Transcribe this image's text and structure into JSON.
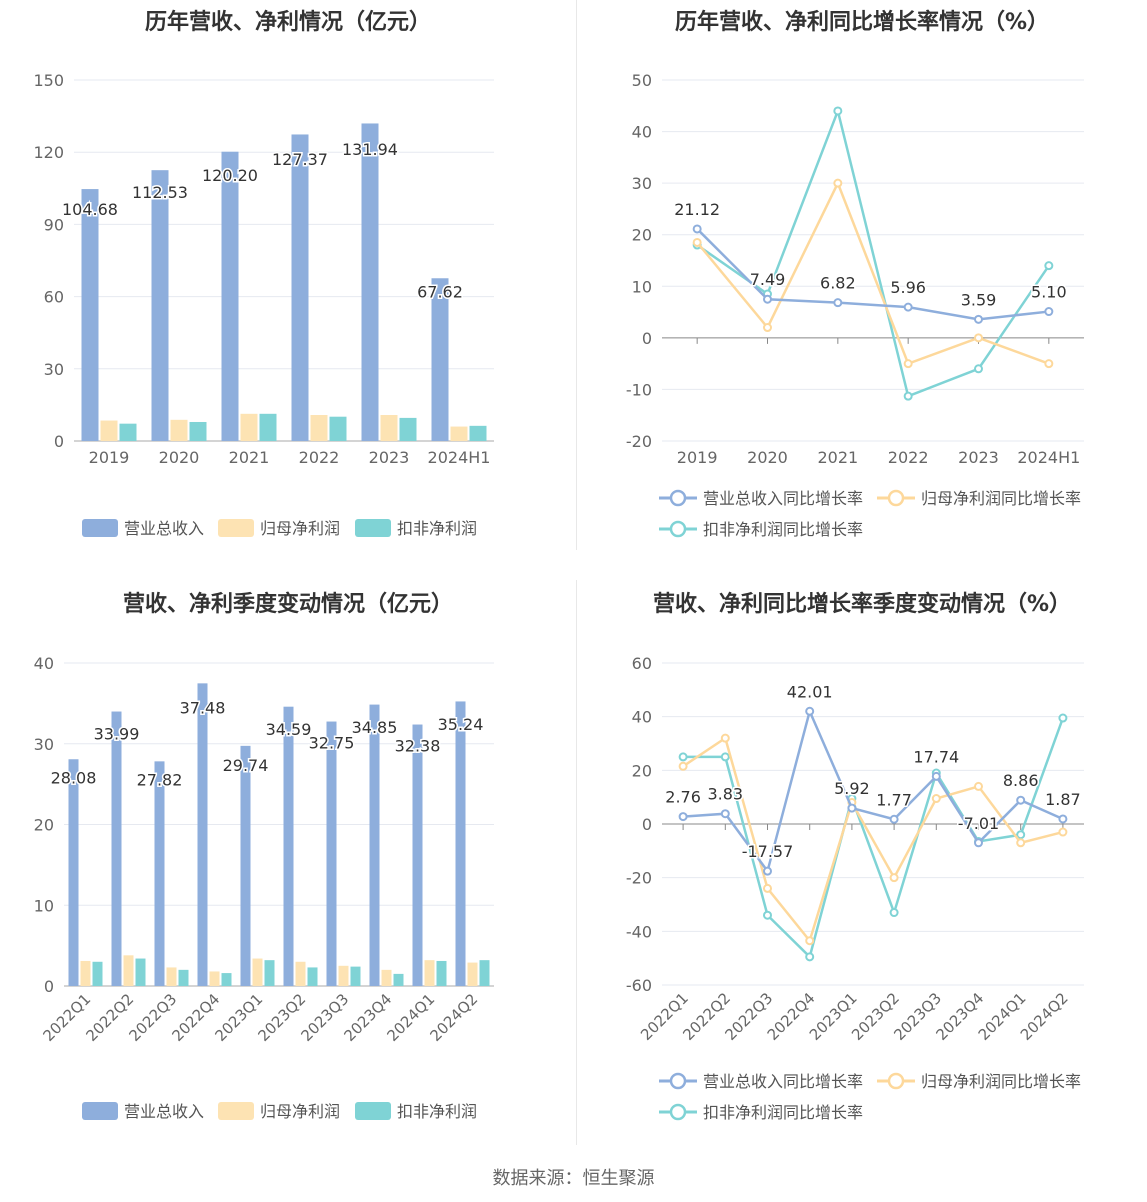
{
  "footer": {
    "source": "数据来源：恒生聚源"
  },
  "colors": {
    "revenue": "#8eaedc",
    "net_profit": "#fde3b3",
    "deducted": "#7fd3d5",
    "revenue_line": "#8eaedc",
    "net_line": "#fdd89b",
    "deducted_line": "#7fd3d5"
  },
  "chart_data": [
    {
      "type": "bar",
      "title": "历年营收、净利情况（亿元）",
      "categories": [
        "2019",
        "2020",
        "2021",
        "2022",
        "2023",
        "2024H1"
      ],
      "ylim": [
        0,
        150
      ],
      "yticks": [
        0,
        30,
        60,
        90,
        120,
        150
      ],
      "series": [
        {
          "name": "营业总收入",
          "values": [
            104.68,
            112.53,
            120.2,
            127.37,
            131.94,
            67.62
          ],
          "labels": [
            "104.68",
            "112.53",
            "120.20",
            "127.37",
            "131.94",
            "67.62"
          ]
        },
        {
          "name": "归母净利润",
          "values": [
            8.5,
            8.8,
            11.3,
            10.8,
            10.8,
            6.0
          ]
        },
        {
          "name": "扣非净利润",
          "values": [
            7.2,
            7.9,
            11.3,
            10.1,
            9.6,
            6.3
          ]
        }
      ]
    },
    {
      "type": "line",
      "title": "历年营收、净利同比增长率情况（%）",
      "categories": [
        "2019",
        "2020",
        "2021",
        "2022",
        "2023",
        "2024H1"
      ],
      "ylim": [
        -20,
        50
      ],
      "yticks": [
        -20,
        -10,
        0,
        10,
        20,
        30,
        40,
        50
      ],
      "series": [
        {
          "name": "营业总收入同比增长率",
          "values": [
            21.12,
            7.49,
            6.82,
            5.96,
            3.59,
            5.1
          ],
          "labels": [
            "21.12",
            "7.49",
            "6.82",
            "5.96",
            "3.59",
            "5.10"
          ]
        },
        {
          "name": "归母净利润同比增长率",
          "values": [
            18.5,
            2.0,
            30.0,
            -5.0,
            0.0,
            -5.0
          ]
        },
        {
          "name": "扣非净利润同比增长率",
          "values": [
            18.0,
            8.5,
            44.0,
            -11.3,
            -6.0,
            14.0
          ]
        }
      ]
    },
    {
      "type": "bar",
      "title": "营收、净利季度变动情况（亿元）",
      "categories": [
        "2022Q1",
        "2022Q2",
        "2022Q3",
        "2022Q4",
        "2023Q1",
        "2023Q2",
        "2023Q3",
        "2023Q4",
        "2024Q1",
        "2024Q2"
      ],
      "ylim": [
        0,
        40
      ],
      "yticks": [
        0,
        10,
        20,
        30,
        40
      ],
      "series": [
        {
          "name": "营业总收入",
          "values": [
            28.08,
            33.99,
            27.82,
            37.48,
            29.74,
            34.59,
            32.75,
            34.85,
            32.38,
            35.24
          ],
          "labels": [
            "28.08",
            "33.99",
            "27.82",
            "37.48",
            "29.74",
            "34.59",
            "32.75",
            "34.85",
            "32.38",
            "35.24"
          ]
        },
        {
          "name": "归母净利润",
          "values": [
            3.1,
            3.8,
            2.3,
            1.8,
            3.4,
            3.0,
            2.5,
            2.0,
            3.2,
            2.9
          ]
        },
        {
          "name": "扣非净利润",
          "values": [
            3.0,
            3.4,
            2.0,
            1.6,
            3.2,
            2.3,
            2.4,
            1.5,
            3.1,
            3.2
          ]
        }
      ]
    },
    {
      "type": "line",
      "title": "营收、净利同比增长率季度变动情况（%）",
      "categories": [
        "2022Q1",
        "2022Q2",
        "2022Q3",
        "2022Q4",
        "2023Q1",
        "2023Q2",
        "2023Q3",
        "2023Q4",
        "2024Q1",
        "2024Q2"
      ],
      "ylim": [
        -60,
        60
      ],
      "yticks": [
        -60,
        -40,
        -20,
        0,
        20,
        40,
        60
      ],
      "series": [
        {
          "name": "营业总收入同比增长率",
          "values": [
            2.76,
            3.83,
            -17.57,
            42.01,
            5.92,
            1.77,
            17.74,
            -7.01,
            8.86,
            1.87
          ],
          "labels": [
            "2.76",
            "3.83",
            "-17.57",
            "42.01",
            "5.92",
            "1.77",
            "17.74",
            "-7.01",
            "8.86",
            "1.87"
          ]
        },
        {
          "name": "归母净利润同比增长率",
          "values": [
            21.5,
            32.0,
            -24.0,
            -43.5,
            8.0,
            -20.0,
            9.5,
            14.0,
            -7.0,
            -3.0
          ]
        },
        {
          "name": "扣非净利润同比增长率",
          "values": [
            25.0,
            25.0,
            -34.0,
            -49.5,
            9.5,
            -33.0,
            19.0,
            -6.5,
            -4.0,
            39.5
          ]
        }
      ]
    }
  ]
}
